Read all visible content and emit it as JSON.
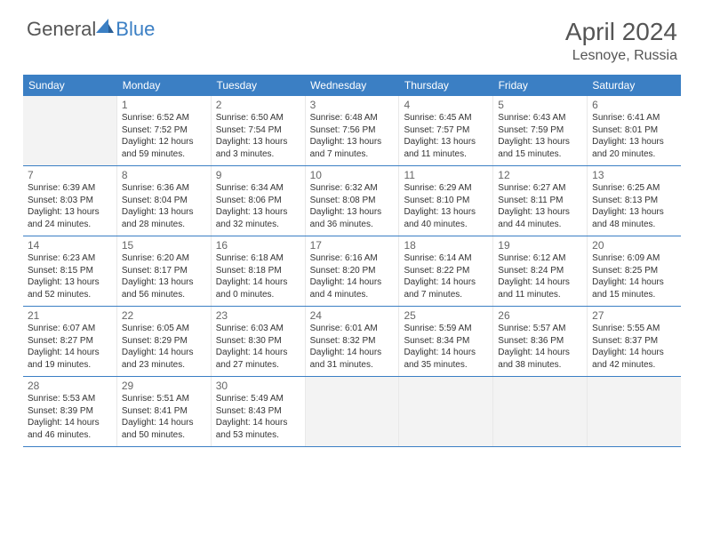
{
  "brand": {
    "text1": "General",
    "text2": "Blue",
    "logo_fill": "#3b7fc4"
  },
  "header": {
    "month": "April 2024",
    "location": "Lesnoye, Russia"
  },
  "colors": {
    "header_bg": "#3b7fc4",
    "text": "#555555",
    "cell_text": "#333333",
    "empty_bg": "#f3f3f3"
  },
  "dow": [
    "Sunday",
    "Monday",
    "Tuesday",
    "Wednesday",
    "Thursday",
    "Friday",
    "Saturday"
  ],
  "weeks": [
    [
      null,
      {
        "d": "1",
        "sr": "6:52 AM",
        "ss": "7:52 PM",
        "dl": "12 hours and 59 minutes."
      },
      {
        "d": "2",
        "sr": "6:50 AM",
        "ss": "7:54 PM",
        "dl": "13 hours and 3 minutes."
      },
      {
        "d": "3",
        "sr": "6:48 AM",
        "ss": "7:56 PM",
        "dl": "13 hours and 7 minutes."
      },
      {
        "d": "4",
        "sr": "6:45 AM",
        "ss": "7:57 PM",
        "dl": "13 hours and 11 minutes."
      },
      {
        "d": "5",
        "sr": "6:43 AM",
        "ss": "7:59 PM",
        "dl": "13 hours and 15 minutes."
      },
      {
        "d": "6",
        "sr": "6:41 AM",
        "ss": "8:01 PM",
        "dl": "13 hours and 20 minutes."
      }
    ],
    [
      {
        "d": "7",
        "sr": "6:39 AM",
        "ss": "8:03 PM",
        "dl": "13 hours and 24 minutes."
      },
      {
        "d": "8",
        "sr": "6:36 AM",
        "ss": "8:04 PM",
        "dl": "13 hours and 28 minutes."
      },
      {
        "d": "9",
        "sr": "6:34 AM",
        "ss": "8:06 PM",
        "dl": "13 hours and 32 minutes."
      },
      {
        "d": "10",
        "sr": "6:32 AM",
        "ss": "8:08 PM",
        "dl": "13 hours and 36 minutes."
      },
      {
        "d": "11",
        "sr": "6:29 AM",
        "ss": "8:10 PM",
        "dl": "13 hours and 40 minutes."
      },
      {
        "d": "12",
        "sr": "6:27 AM",
        "ss": "8:11 PM",
        "dl": "13 hours and 44 minutes."
      },
      {
        "d": "13",
        "sr": "6:25 AM",
        "ss": "8:13 PM",
        "dl": "13 hours and 48 minutes."
      }
    ],
    [
      {
        "d": "14",
        "sr": "6:23 AM",
        "ss": "8:15 PM",
        "dl": "13 hours and 52 minutes."
      },
      {
        "d": "15",
        "sr": "6:20 AM",
        "ss": "8:17 PM",
        "dl": "13 hours and 56 minutes."
      },
      {
        "d": "16",
        "sr": "6:18 AM",
        "ss": "8:18 PM",
        "dl": "14 hours and 0 minutes."
      },
      {
        "d": "17",
        "sr": "6:16 AM",
        "ss": "8:20 PM",
        "dl": "14 hours and 4 minutes."
      },
      {
        "d": "18",
        "sr": "6:14 AM",
        "ss": "8:22 PM",
        "dl": "14 hours and 7 minutes."
      },
      {
        "d": "19",
        "sr": "6:12 AM",
        "ss": "8:24 PM",
        "dl": "14 hours and 11 minutes."
      },
      {
        "d": "20",
        "sr": "6:09 AM",
        "ss": "8:25 PM",
        "dl": "14 hours and 15 minutes."
      }
    ],
    [
      {
        "d": "21",
        "sr": "6:07 AM",
        "ss": "8:27 PM",
        "dl": "14 hours and 19 minutes."
      },
      {
        "d": "22",
        "sr": "6:05 AM",
        "ss": "8:29 PM",
        "dl": "14 hours and 23 minutes."
      },
      {
        "d": "23",
        "sr": "6:03 AM",
        "ss": "8:30 PM",
        "dl": "14 hours and 27 minutes."
      },
      {
        "d": "24",
        "sr": "6:01 AM",
        "ss": "8:32 PM",
        "dl": "14 hours and 31 minutes."
      },
      {
        "d": "25",
        "sr": "5:59 AM",
        "ss": "8:34 PM",
        "dl": "14 hours and 35 minutes."
      },
      {
        "d": "26",
        "sr": "5:57 AM",
        "ss": "8:36 PM",
        "dl": "14 hours and 38 minutes."
      },
      {
        "d": "27",
        "sr": "5:55 AM",
        "ss": "8:37 PM",
        "dl": "14 hours and 42 minutes."
      }
    ],
    [
      {
        "d": "28",
        "sr": "5:53 AM",
        "ss": "8:39 PM",
        "dl": "14 hours and 46 minutes."
      },
      {
        "d": "29",
        "sr": "5:51 AM",
        "ss": "8:41 PM",
        "dl": "14 hours and 50 minutes."
      },
      {
        "d": "30",
        "sr": "5:49 AM",
        "ss": "8:43 PM",
        "dl": "14 hours and 53 minutes."
      },
      null,
      null,
      null,
      null
    ]
  ],
  "labels": {
    "sunrise": "Sunrise: ",
    "sunset": "Sunset: ",
    "daylight": "Daylight: "
  }
}
